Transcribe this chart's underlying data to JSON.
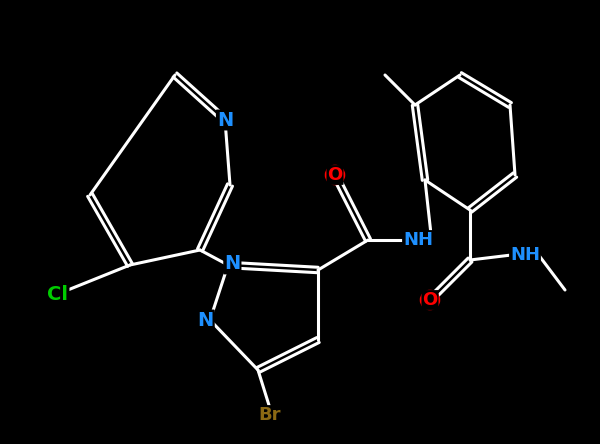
{
  "bg_color": "#000000",
  "bond_color": "#ffffff",
  "bond_width": 2.2,
  "colors": {
    "N": "#1E90FF",
    "O": "#FF0000",
    "Cl": "#00CC00",
    "Br": "#8B6914",
    "NH": "#1E90FF"
  }
}
